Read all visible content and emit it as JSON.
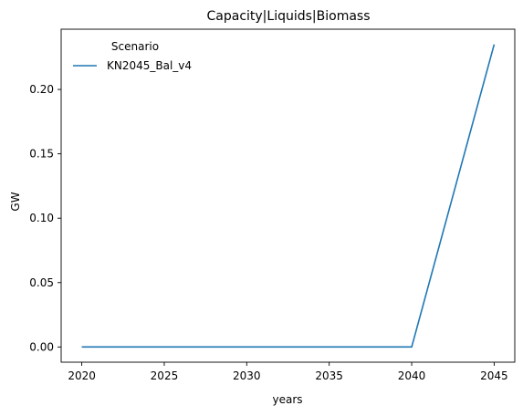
{
  "chart_data": {
    "type": "line",
    "title": "Capacity|Liquids|Biomass",
    "xlabel": "years",
    "ylabel": "GW",
    "x": [
      2020,
      2025,
      2030,
      2035,
      2040,
      2045
    ],
    "series": [
      {
        "name": "KN2045_Bal_v4",
        "color": "#1f77b4",
        "values": [
          0.0,
          0.0,
          0.0,
          0.0,
          0.0,
          0.235
        ]
      }
    ],
    "xticks": [
      2020,
      2025,
      2030,
      2035,
      2040,
      2045
    ],
    "yticks": [
      "0.00",
      "0.05",
      "0.10",
      "0.15",
      "0.20"
    ],
    "xlim": [
      2018.75,
      2046.25
    ],
    "ylim": [
      -0.0118,
      0.2468
    ],
    "legend": {
      "title": "Scenario",
      "placement": "top-left"
    },
    "grid": false
  }
}
